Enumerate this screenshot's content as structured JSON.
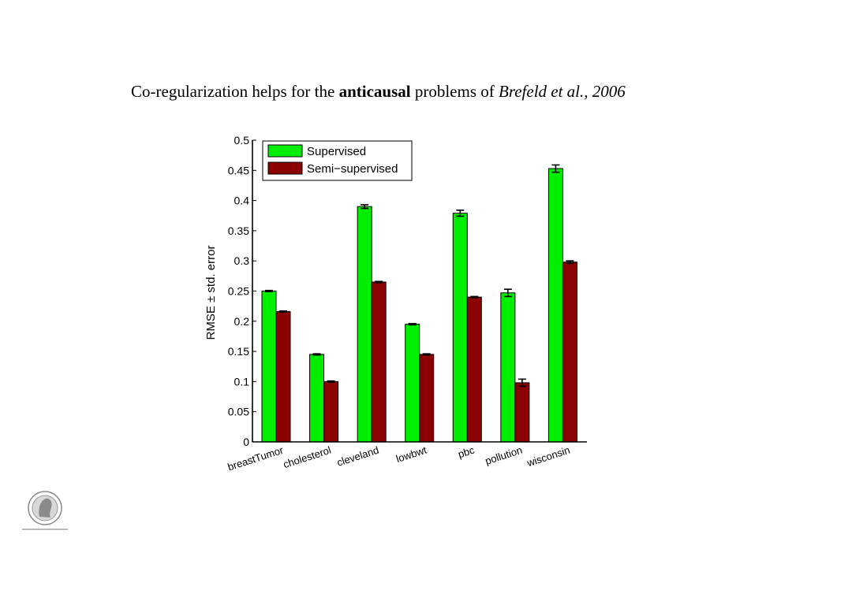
{
  "slide": {
    "title_prefix": "Co-regularization helps for the ",
    "title_bold": "anticausal",
    "title_middle": " problems of ",
    "title_italic": "Brefeld et al., 2006"
  },
  "colors": {
    "supervised": "#00ee00",
    "semi_supervised": "#8b0000",
    "axis": "#000000"
  },
  "chart_data": {
    "type": "bar",
    "title": "",
    "xlabel": "",
    "ylabel": "RMSE ± std. error",
    "ylim": [
      0,
      0.5
    ],
    "yticks": [
      0,
      0.05,
      0.1,
      0.15,
      0.2,
      0.25,
      0.3,
      0.35,
      0.4,
      0.45,
      0.5
    ],
    "ytick_labels": [
      "0",
      "0.05",
      "0.1",
      "0.15",
      "0.2",
      "0.25",
      "0.3",
      "0.35",
      "0.4",
      "0.45",
      "0.5"
    ],
    "categories": [
      "breastTumor",
      "cholesterol",
      "cleveland",
      "lowbwt",
      "pbc",
      "pollution",
      "wisconsin"
    ],
    "series": [
      {
        "name": "Supervised",
        "values": [
          0.25,
          0.145,
          0.39,
          0.195,
          0.379,
          0.247,
          0.453
        ],
        "errors": [
          0.001,
          0.001,
          0.003,
          0.001,
          0.005,
          0.006,
          0.006
        ]
      },
      {
        "name": "Semi−supervised",
        "values": [
          0.216,
          0.1,
          0.265,
          0.145,
          0.24,
          0.098,
          0.298
        ],
        "errors": [
          0.001,
          0.001,
          0.001,
          0.001,
          0.001,
          0.006,
          0.002
        ]
      }
    ],
    "legend_position": "top-left",
    "grid": false
  }
}
